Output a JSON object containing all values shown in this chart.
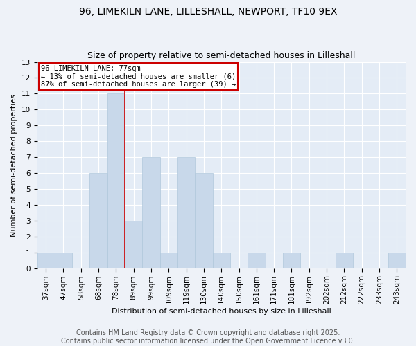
{
  "title": "96, LIMEKILN LANE, LILLESHALL, NEWPORT, TF10 9EX",
  "subtitle": "Size of property relative to semi-detached houses in Lilleshall",
  "xlabel": "Distribution of semi-detached houses by size in Lilleshall",
  "ylabel": "Number of semi-detached properties",
  "categories": [
    "37sqm",
    "47sqm",
    "58sqm",
    "68sqm",
    "78sqm",
    "89sqm",
    "99sqm",
    "109sqm",
    "119sqm",
    "130sqm",
    "140sqm",
    "150sqm",
    "161sqm",
    "171sqm",
    "181sqm",
    "192sqm",
    "202sqm",
    "212sqm",
    "222sqm",
    "233sqm",
    "243sqm"
  ],
  "values": [
    1,
    1,
    0,
    6,
    11,
    3,
    7,
    1,
    7,
    6,
    1,
    0,
    1,
    0,
    1,
    0,
    0,
    1,
    0,
    0,
    1
  ],
  "bar_color": "#c8d8ea",
  "bar_edge_color": "#b0c8dc",
  "highlight_index": 4,
  "highlight_line_color": "#cc0000",
  "annotation_box_edge_color": "#cc0000",
  "annotation_text": "96 LIMEKILN LANE: 77sqm\n← 13% of semi-detached houses are smaller (6)\n87% of semi-detached houses are larger (39) →",
  "ylim": [
    0,
    13
  ],
  "yticks": [
    0,
    1,
    2,
    3,
    4,
    5,
    6,
    7,
    8,
    9,
    10,
    11,
    12,
    13
  ],
  "background_color": "#eef2f8",
  "plot_bg_color": "#e4ecf6",
  "grid_color": "#ffffff",
  "footnote": "Contains HM Land Registry data © Crown copyright and database right 2025.\nContains public sector information licensed under the Open Government Licence v3.0.",
  "title_fontsize": 10,
  "subtitle_fontsize": 9,
  "annotation_fontsize": 7.5,
  "footnote_fontsize": 7,
  "axis_label_fontsize": 8,
  "tick_fontsize": 7.5
}
